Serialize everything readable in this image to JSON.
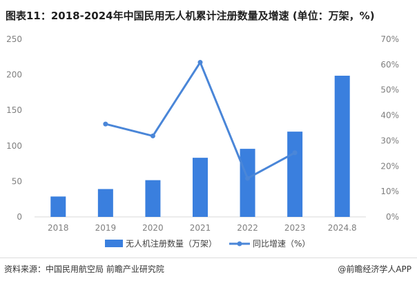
{
  "header": {
    "title": "图表11：2018-2024年中国民用无人机累计注册数量及增速 (单位：万架，%)"
  },
  "footer": {
    "source": "资料来源：中国民用航空局 前瞻产业研究院",
    "brand": "@前瞻经济学人APP"
  },
  "colors": {
    "bar": "#3a7fde",
    "line": "#4a86d8",
    "axis": "#d9d9d9",
    "tick": "#7f7f7f"
  },
  "chart_data": {
    "type": "bar+line",
    "title": "图表11：2018-2024年中国民用无人机累计注册数量及增速 (单位：万架，%)",
    "categories": [
      "2018",
      "2019",
      "2020",
      "2021",
      "2022",
      "2023",
      "2024.8"
    ],
    "y_left": {
      "ylim": [
        0,
        250
      ],
      "ticks": [
        "0",
        "50",
        "100",
        "150",
        "200",
        "250"
      ]
    },
    "y_right": {
      "ylim": [
        0,
        70
      ],
      "ticks": [
        "0%",
        "10%",
        "20%",
        "30%",
        "40%",
        "50%",
        "60%",
        "70%"
      ]
    },
    "series": [
      {
        "name": "无人机注册数量（万架）",
        "type": "bar",
        "axis": "left",
        "values": [
          28.7,
          39.2,
          51.7,
          83.2,
          95.8,
          120.0,
          198.7
        ]
      },
      {
        "name": "同比增速（%）",
        "type": "line",
        "axis": "right",
        "values": [
          null,
          36.6,
          31.9,
          60.9,
          15.2,
          25.3,
          null
        ]
      }
    ],
    "legend": "bottom-center",
    "grid": false
  }
}
